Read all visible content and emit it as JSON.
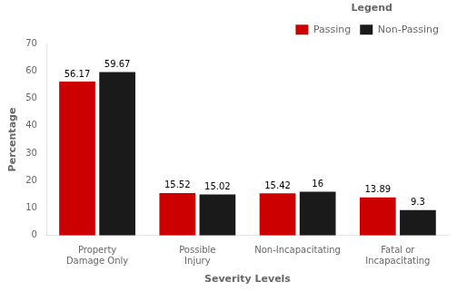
{
  "chart_data": {
    "type": "bar",
    "xlabel": "Severity Levels",
    "ylabel": "Percentage",
    "categories": [
      "Property Damage Only",
      "Possible Injury",
      "Non-Incapacitating",
      "Fatal or Incapacitating"
    ],
    "series": [
      {
        "name": "Passing",
        "color": "#CC0000",
        "values": [
          56.17,
          15.52,
          15.42,
          13.89
        ]
      },
      {
        "name": "Non-Passing",
        "color": "#1A1A1A",
        "values": [
          59.67,
          15.02,
          16,
          9.3
        ]
      }
    ],
    "ylim": [
      0,
      70
    ],
    "yticks": [
      0,
      10,
      20,
      30,
      40,
      50,
      60,
      70
    ],
    "grid": false,
    "legend": "upper right",
    "legend_title": "Legend",
    "data_labels": true
  }
}
